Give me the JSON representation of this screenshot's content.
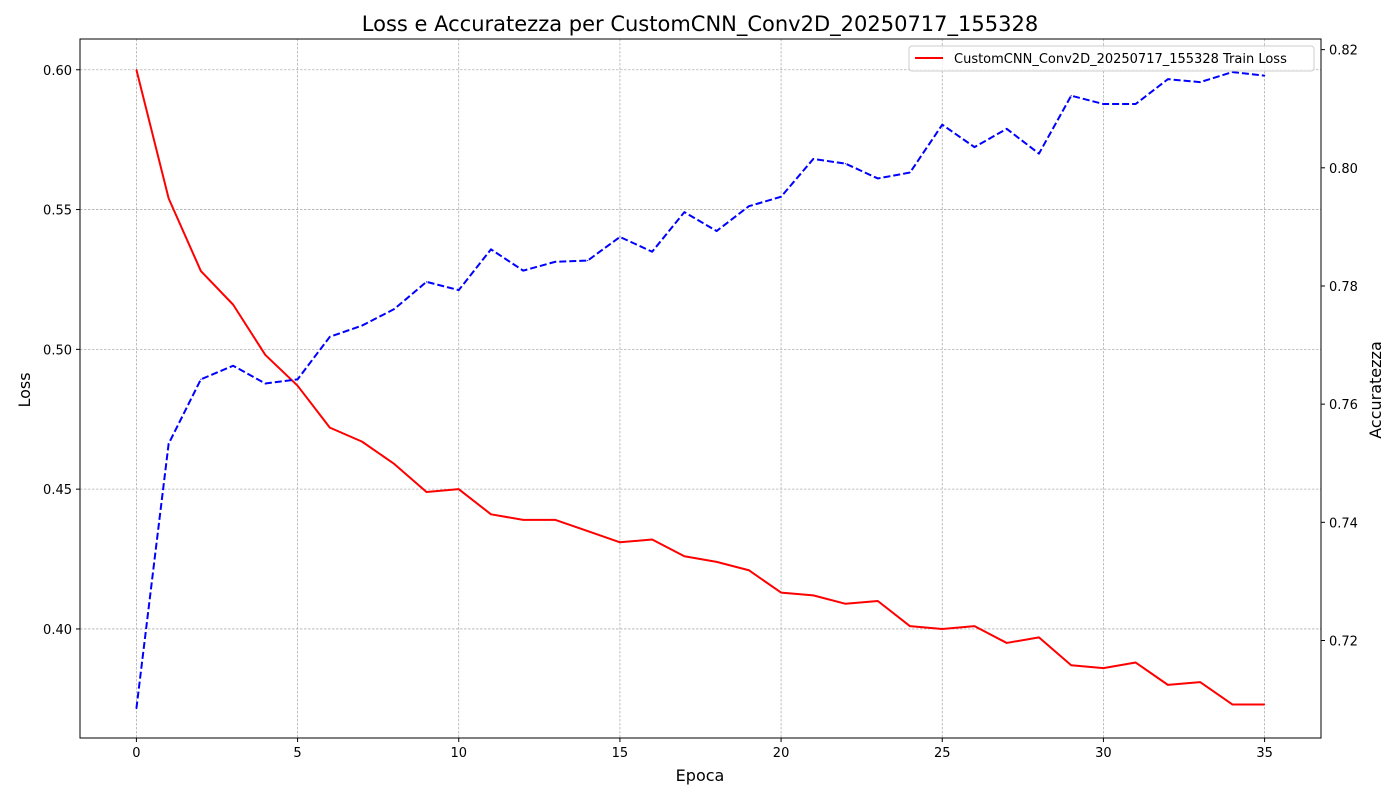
{
  "chart_data": {
    "type": "line",
    "title": "Loss e Accuratezza per CustomCNN_Conv2D_20250717_155328",
    "xlabel": "Epoca",
    "ylabel": "Loss",
    "ylabel_right": "Accuratezza",
    "xlim": [
      -1.75,
      36.75
    ],
    "ylim": [
      0.361,
      0.611
    ],
    "ylim_right": [
      0.7035,
      0.8218
    ],
    "x_ticks": [
      0,
      5,
      10,
      15,
      20,
      25,
      30,
      35
    ],
    "y_ticks": [
      0.4,
      0.45,
      0.5,
      0.55,
      0.6
    ],
    "y_ticks_right": [
      0.72,
      0.74,
      0.76,
      0.78,
      0.8,
      0.82
    ],
    "grid": true,
    "legend_position": "upper right",
    "x": [
      0,
      1,
      2,
      3,
      4,
      5,
      6,
      7,
      8,
      9,
      10,
      11,
      12,
      13,
      14,
      15,
      16,
      17,
      18,
      19,
      20,
      21,
      22,
      23,
      24,
      25,
      26,
      27,
      28,
      29,
      30,
      31,
      32,
      33,
      34,
      35
    ],
    "series": [
      {
        "name": "CustomCNN_Conv2D_20250717_155328 Train Loss",
        "axis": "left",
        "color": "#ff0000",
        "style": "solid",
        "values": [
          0.6,
          0.554,
          0.528,
          0.516,
          0.498,
          0.487,
          0.472,
          0.467,
          0.459,
          0.449,
          0.45,
          0.441,
          0.439,
          0.439,
          0.435,
          0.431,
          0.432,
          0.426,
          0.424,
          0.421,
          0.413,
          0.412,
          0.409,
          0.41,
          0.401,
          0.4,
          0.401,
          0.395,
          0.397,
          0.387,
          0.386,
          0.388,
          0.38,
          0.381,
          0.373,
          0.373
        ]
      },
      {
        "axis": "right",
        "color": "#0000ff",
        "style": "dashed",
        "values": [
          0.7085,
          0.7533,
          0.7642,
          0.7665,
          0.7635,
          0.7642,
          0.7714,
          0.7733,
          0.7761,
          0.7807,
          0.7793,
          0.7862,
          0.7826,
          0.7841,
          0.7843,
          0.7883,
          0.7858,
          0.7925,
          0.7893,
          0.7935,
          0.7951,
          0.8015,
          0.8007,
          0.7982,
          0.7992,
          0.8073,
          0.8035,
          0.8066,
          0.8024,
          0.8122,
          0.8108,
          0.8108,
          0.815,
          0.8145,
          0.8162,
          0.8156
        ]
      }
    ]
  }
}
